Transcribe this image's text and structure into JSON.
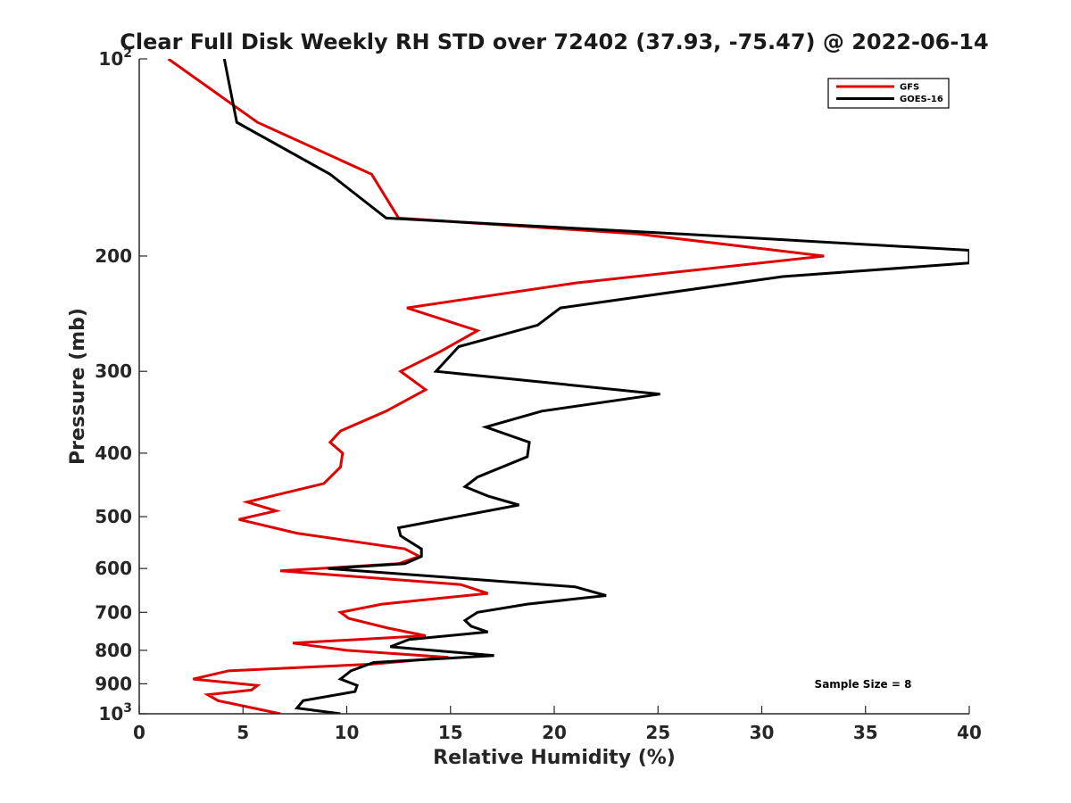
{
  "chart_data": {
    "type": "line",
    "title": "Clear Full Disk Weekly RH STD over 72402 (37.93, -75.47) @ 2022-06-14",
    "xlabel": "Relative Humidity (%)",
    "ylabel": "Pressure (mb)",
    "xlim": [
      0,
      40
    ],
    "ylim": [
      100,
      1000
    ],
    "y_scale": "log",
    "y_reversed": true,
    "x_ticks": [
      0,
      5,
      10,
      15,
      20,
      25,
      30,
      35,
      40
    ],
    "x_tick_labels": [
      "0",
      "5",
      "10",
      "15",
      "20",
      "25",
      "30",
      "35",
      "40"
    ],
    "y_ticks": [
      100,
      200,
      300,
      400,
      500,
      600,
      700,
      800,
      900,
      1000
    ],
    "y_tick_labels": [
      {
        "base": "10",
        "exp": "2"
      },
      {
        "base": "200",
        "exp": ""
      },
      {
        "base": "300",
        "exp": ""
      },
      {
        "base": "400",
        "exp": ""
      },
      {
        "base": "500",
        "exp": ""
      },
      {
        "base": "600",
        "exp": ""
      },
      {
        "base": "700",
        "exp": ""
      },
      {
        "base": "800",
        "exp": ""
      },
      {
        "base": "900",
        "exp": ""
      },
      {
        "base": "10",
        "exp": "3"
      }
    ],
    "legend_position": "top-right",
    "annotation": "Sample Size = 8",
    "series": [
      {
        "name": "GFS",
        "color": "#e00000",
        "points": [
          [
            1.4,
            100
          ],
          [
            5.7,
            125
          ],
          [
            11.2,
            150
          ],
          [
            12.5,
            175
          ],
          [
            24,
            185
          ],
          [
            33,
            200
          ],
          [
            21,
            220
          ],
          [
            12.9,
            240
          ],
          [
            16.3,
            260
          ],
          [
            14.5,
            280
          ],
          [
            12.6,
            300
          ],
          [
            13.8,
            320
          ],
          [
            11.9,
            345
          ],
          [
            9.7,
            370
          ],
          [
            9.2,
            385
          ],
          [
            9.8,
            400
          ],
          [
            9.7,
            420
          ],
          [
            8.9,
            445
          ],
          [
            5.2,
            475
          ],
          [
            6.6,
            490
          ],
          [
            4.8,
            505
          ],
          [
            7.6,
            530
          ],
          [
            12.8,
            560
          ],
          [
            13.5,
            575
          ],
          [
            12.5,
            590
          ],
          [
            6.8,
            605
          ],
          [
            15.5,
            635
          ],
          [
            16.8,
            655
          ],
          [
            11.7,
            680
          ],
          [
            9.7,
            700
          ],
          [
            10.1,
            715
          ],
          [
            12,
            740
          ],
          [
            13.8,
            760
          ],
          [
            7.4,
            780
          ],
          [
            10,
            800
          ],
          [
            14.9,
            820
          ],
          [
            11.2,
            840
          ],
          [
            4.3,
            860
          ],
          [
            2.6,
            885
          ],
          [
            5.7,
            905
          ],
          [
            5.4,
            920
          ],
          [
            3.3,
            935
          ],
          [
            3.8,
            955
          ],
          [
            6.8,
            1000
          ]
        ]
      },
      {
        "name": "GOES-16",
        "color": "#000000",
        "points": [
          [
            4.1,
            100
          ],
          [
            4.7,
            125
          ],
          [
            9.2,
            150
          ],
          [
            11.9,
            175
          ],
          [
            26,
            185
          ],
          [
            40,
            196
          ],
          [
            40,
            205
          ],
          [
            31,
            215
          ],
          [
            20.3,
            240
          ],
          [
            19.2,
            255
          ],
          [
            15.4,
            275
          ],
          [
            14.3,
            300
          ],
          [
            25.1,
            325
          ],
          [
            19.4,
            345
          ],
          [
            16.7,
            365
          ],
          [
            18.8,
            385
          ],
          [
            18.7,
            405
          ],
          [
            16.3,
            435
          ],
          [
            15.7,
            450
          ],
          [
            16.8,
            465
          ],
          [
            18.3,
            480
          ],
          [
            12.5,
            520
          ],
          [
            12.6,
            535
          ],
          [
            13.6,
            560
          ],
          [
            13.6,
            575
          ],
          [
            12.8,
            590
          ],
          [
            9.1,
            600
          ],
          [
            21,
            640
          ],
          [
            22.5,
            660
          ],
          [
            18.7,
            680
          ],
          [
            16.3,
            700
          ],
          [
            15.7,
            720
          ],
          [
            16,
            735
          ],
          [
            16.8,
            750
          ],
          [
            13,
            770
          ],
          [
            12.1,
            790
          ],
          [
            17.1,
            815
          ],
          [
            11.3,
            835
          ],
          [
            10.2,
            860
          ],
          [
            9.7,
            885
          ],
          [
            10.5,
            905
          ],
          [
            10.4,
            925
          ],
          [
            7.9,
            955
          ],
          [
            7.6,
            980
          ],
          [
            9.7,
            1000
          ]
        ]
      }
    ]
  }
}
